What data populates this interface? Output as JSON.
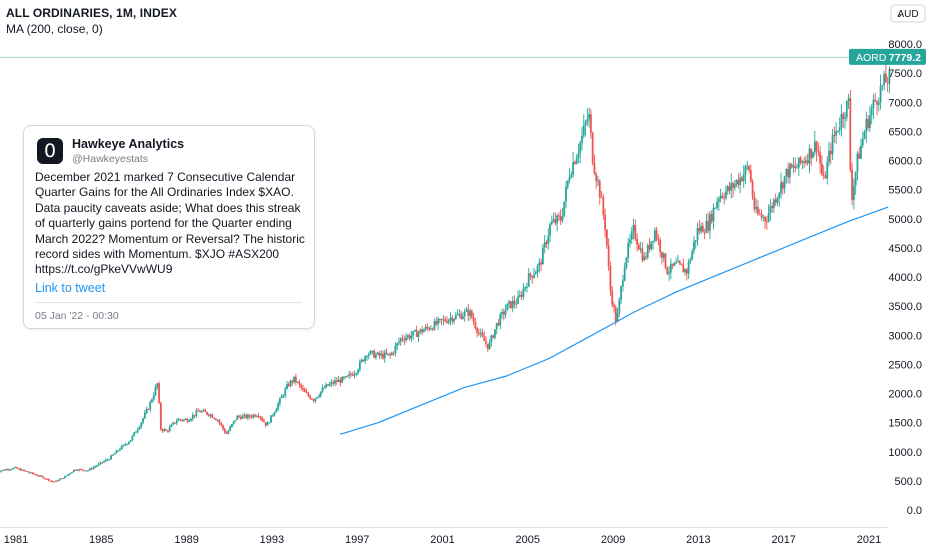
{
  "header": {
    "title": "ALL ORDINARIES, 1M, INDEX",
    "indicator": "MA (200, close, 0)"
  },
  "price_axis": {
    "currency_button": "AUD"
  },
  "badge": {
    "symbol": "AORD",
    "value": "7779.2"
  },
  "colors": {
    "up": "#26a69a",
    "down": "#ef5350",
    "ma": "#2196f3",
    "badge": "#26a69a"
  },
  "tweet": {
    "logo_icon": "tradingview-logo-icon",
    "author": "Hawkeye Analytics",
    "handle": "@Hawkeyestats",
    "text": "December 2021 marked 7 Consecutive Calendar Quarter Gains for the All Ordinaries Index $XAO. Data paucity caveats aside; What does this streak of quarterly gains portend for the Quarter ending March 2022? Momentum or Reversal? The historic record sides with Momentum. $XJO #ASX200 https://t.co/gPkeVVwWU9",
    "link_label": "Link to tweet",
    "date": "05 Jan '22 - 00:30"
  },
  "chart_data": {
    "type": "candlestick",
    "title": "ALL ORDINARIES, 1M, INDEX",
    "ylim": [
      -200,
      8400
    ],
    "y_ticks": [
      "8000.0",
      "7500.0",
      "7000.0",
      "6500.0",
      "6000.0",
      "5500.0",
      "5000.0",
      "4500.0",
      "4000.0",
      "3500.0",
      "3000.0",
      "2500.0",
      "2000.0",
      "1500.0",
      "1000.0",
      "500.0",
      "0.0"
    ],
    "x_ticks": [
      "1981",
      "1985",
      "1989",
      "1993",
      "1997",
      "2001",
      "2005",
      "2009",
      "2013",
      "2017",
      "2021"
    ],
    "x_range": [
      1980.0,
      2022.2
    ],
    "grid": false,
    "last_price": 7779.2,
    "series": [
      {
        "name": "ALL ORDINARIES",
        "kind": "close_path",
        "points": [
          [
            1980.0,
            650
          ],
          [
            1980.6,
            700
          ],
          [
            1981.0,
            720
          ],
          [
            1981.6,
            650
          ],
          [
            1982.3,
            560
          ],
          [
            1982.8,
            480
          ],
          [
            1983.3,
            560
          ],
          [
            1983.8,
            700
          ],
          [
            1984.4,
            680
          ],
          [
            1984.9,
            780
          ],
          [
            1985.4,
            880
          ],
          [
            1985.9,
            1050
          ],
          [
            1986.4,
            1200
          ],
          [
            1986.9,
            1500
          ],
          [
            1987.3,
            1800
          ],
          [
            1987.7,
            2200
          ],
          [
            1987.8,
            1400
          ],
          [
            1988.1,
            1350
          ],
          [
            1988.6,
            1550
          ],
          [
            1989.1,
            1550
          ],
          [
            1989.6,
            1700
          ],
          [
            1990.1,
            1650
          ],
          [
            1990.5,
            1550
          ],
          [
            1990.9,
            1300
          ],
          [
            1991.4,
            1600
          ],
          [
            1991.9,
            1600
          ],
          [
            1992.4,
            1650
          ],
          [
            1992.8,
            1450
          ],
          [
            1993.3,
            1800
          ],
          [
            1993.8,
            2150
          ],
          [
            1994.1,
            2250
          ],
          [
            1994.6,
            2000
          ],
          [
            1995.0,
            1900
          ],
          [
            1995.5,
            2100
          ],
          [
            1996.0,
            2200
          ],
          [
            1996.5,
            2250
          ],
          [
            1997.0,
            2400
          ],
          [
            1997.5,
            2700
          ],
          [
            1998.0,
            2650
          ],
          [
            1998.6,
            2650
          ],
          [
            1999.1,
            2950
          ],
          [
            1999.6,
            3000
          ],
          [
            2000.2,
            3100
          ],
          [
            2000.8,
            3200
          ],
          [
            2001.4,
            3300
          ],
          [
            2001.9,
            3350
          ],
          [
            2002.3,
            3400
          ],
          [
            2002.8,
            3000
          ],
          [
            2003.2,
            2800
          ],
          [
            2003.6,
            3200
          ],
          [
            2004.1,
            3500
          ],
          [
            2004.6,
            3600
          ],
          [
            2005.1,
            4000
          ],
          [
            2005.6,
            4200
          ],
          [
            2006.1,
            4900
          ],
          [
            2006.6,
            5000
          ],
          [
            2007.0,
            5800
          ],
          [
            2007.5,
            6300
          ],
          [
            2007.9,
            6800
          ],
          [
            2008.1,
            6000
          ],
          [
            2008.4,
            5500
          ],
          [
            2008.7,
            4800
          ],
          [
            2008.9,
            3800
          ],
          [
            2009.2,
            3200
          ],
          [
            2009.6,
            4300
          ],
          [
            2010.0,
            4800
          ],
          [
            2010.5,
            4300
          ],
          [
            2011.0,
            4800
          ],
          [
            2011.6,
            4100
          ],
          [
            2012.0,
            4200
          ],
          [
            2012.5,
            4100
          ],
          [
            2013.0,
            4800
          ],
          [
            2013.5,
            4900
          ],
          [
            2014.0,
            5400
          ],
          [
            2014.5,
            5500
          ],
          [
            2015.0,
            5700
          ],
          [
            2015.4,
            5900
          ],
          [
            2015.7,
            5100
          ],
          [
            2016.2,
            5000
          ],
          [
            2016.7,
            5400
          ],
          [
            2017.2,
            5800
          ],
          [
            2017.7,
            5900
          ],
          [
            2018.2,
            6100
          ],
          [
            2018.6,
            6300
          ],
          [
            2018.9,
            5600
          ],
          [
            2019.3,
            6300
          ],
          [
            2019.8,
            6800
          ],
          [
            2020.1,
            7000
          ],
          [
            2020.2,
            5300
          ],
          [
            2020.5,
            6000
          ],
          [
            2020.9,
            6600
          ],
          [
            2021.3,
            7000
          ],
          [
            2021.7,
            7300
          ],
          [
            2021.9,
            7400
          ]
        ]
      },
      {
        "name": "MA (200, close, 0)",
        "kind": "line",
        "points": [
          [
            1996.2,
            1300
          ],
          [
            1998.0,
            1500
          ],
          [
            2000.0,
            1800
          ],
          [
            2002.0,
            2100
          ],
          [
            2004.0,
            2300
          ],
          [
            2006.0,
            2600
          ],
          [
            2008.0,
            3000
          ],
          [
            2009.0,
            3200
          ],
          [
            2010.0,
            3400
          ],
          [
            2012.0,
            3750
          ],
          [
            2014.0,
            4050
          ],
          [
            2016.0,
            4350
          ],
          [
            2018.0,
            4650
          ],
          [
            2020.0,
            4950
          ],
          [
            2021.9,
            5200
          ]
        ]
      }
    ]
  }
}
